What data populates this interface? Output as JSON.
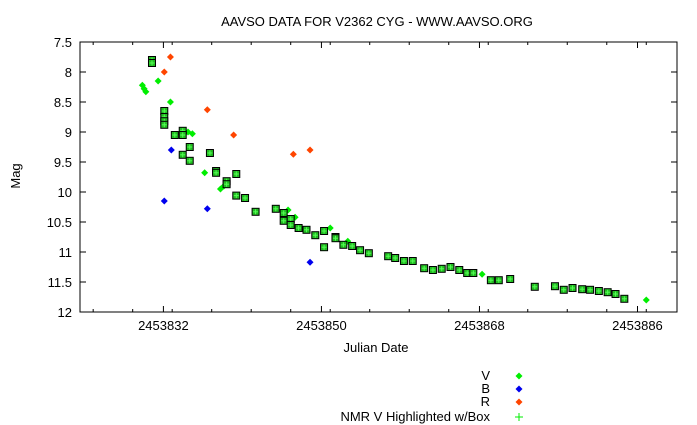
{
  "chart_data": {
    "type": "scatter",
    "title": "AAVSO DATA FOR V2362 CYG - WWW.AAVSO.ORG",
    "xlabel": "Julian Date",
    "ylabel": "Mag",
    "xlim": [
      2453822.5,
      2453890.5
    ],
    "ylim": [
      7.5,
      12
    ],
    "y_inverted": true,
    "x_ticks": [
      2453832,
      2453850,
      2453868,
      2453886
    ],
    "x_tick_labels": [
      "2453832",
      "2453850",
      "2453868",
      "2453886"
    ],
    "y_ticks": [
      7.5,
      8,
      8.5,
      9,
      9.5,
      10,
      10.5,
      11,
      11.5,
      12
    ],
    "y_tick_labels": [
      "7.5",
      "8",
      "8.5",
      "9",
      "9.5",
      "10",
      "10.5",
      "11",
      "11.5",
      "12"
    ],
    "grid": false,
    "legend_position": "bottom-right",
    "series": [
      {
        "name": "V",
        "color": "#00ee00",
        "marker": "diamond",
        "points": [
          [
            2453829.6,
            8.22
          ],
          [
            2453829.8,
            8.28
          ],
          [
            2453830.0,
            8.33
          ],
          [
            2453831.4,
            8.15
          ],
          [
            2453832.8,
            8.5
          ],
          [
            2453834.8,
            9.0
          ],
          [
            2453835.3,
            9.03
          ],
          [
            2453836.7,
            9.68
          ],
          [
            2453838.5,
            9.95
          ],
          [
            2453838.9,
            9.9
          ],
          [
            2453846.2,
            10.3
          ],
          [
            2453847.0,
            10.42
          ],
          [
            2453851.0,
            10.6
          ],
          [
            2453853.0,
            10.82
          ],
          [
            2453868.3,
            11.37
          ],
          [
            2453887.0,
            11.8
          ]
        ]
      },
      {
        "name": "B",
        "color": "#0000ee",
        "marker": "diamond",
        "points": [
          [
            2453832.1,
            10.15
          ],
          [
            2453832.9,
            9.3
          ],
          [
            2453837.0,
            10.28
          ],
          [
            2453848.7,
            11.17
          ]
        ]
      },
      {
        "name": "R",
        "color": "#ff4500",
        "marker": "diamond",
        "points": [
          [
            2453832.1,
            8.0
          ],
          [
            2453832.8,
            7.75
          ],
          [
            2453837.0,
            8.63
          ],
          [
            2453840.0,
            9.05
          ],
          [
            2453846.8,
            9.37
          ],
          [
            2453848.7,
            9.3
          ]
        ]
      },
      {
        "name": "NMR V Highlighted w/Box",
        "color": "#00ee00",
        "marker": "plus-box",
        "points": [
          [
            2453830.7,
            7.8
          ],
          [
            2453830.7,
            7.85
          ],
          [
            2453832.1,
            8.65
          ],
          [
            2453832.1,
            8.75
          ],
          [
            2453832.1,
            8.82
          ],
          [
            2453832.1,
            8.88
          ],
          [
            2453833.3,
            9.05
          ],
          [
            2453834.2,
            8.98
          ],
          [
            2453834.2,
            9.05
          ],
          [
            2453834.2,
            9.38
          ],
          [
            2453835.0,
            9.25
          ],
          [
            2453835.0,
            9.48
          ],
          [
            2453837.3,
            9.35
          ],
          [
            2453838.0,
            9.65
          ],
          [
            2453838.0,
            9.68
          ],
          [
            2453839.2,
            9.82
          ],
          [
            2453839.2,
            9.87
          ],
          [
            2453840.3,
            9.7
          ],
          [
            2453840.3,
            10.06
          ],
          [
            2453841.3,
            10.1
          ],
          [
            2453842.5,
            10.33
          ],
          [
            2453844.8,
            10.28
          ],
          [
            2453845.7,
            10.35
          ],
          [
            2453845.7,
            10.48
          ],
          [
            2453846.5,
            10.45
          ],
          [
            2453846.5,
            10.55
          ],
          [
            2453847.4,
            10.6
          ],
          [
            2453848.3,
            10.63
          ],
          [
            2453849.3,
            10.72
          ],
          [
            2453850.3,
            10.65
          ],
          [
            2453850.3,
            10.92
          ],
          [
            2453851.6,
            10.75
          ],
          [
            2453851.6,
            10.77
          ],
          [
            2453852.5,
            10.88
          ],
          [
            2453853.5,
            10.9
          ],
          [
            2453854.4,
            10.97
          ],
          [
            2453855.4,
            11.02
          ],
          [
            2453857.6,
            11.07
          ],
          [
            2453858.4,
            11.1
          ],
          [
            2453859.4,
            11.15
          ],
          [
            2453860.4,
            11.15
          ],
          [
            2453861.7,
            11.27
          ],
          [
            2453862.7,
            11.3
          ],
          [
            2453863.7,
            11.28
          ],
          [
            2453864.7,
            11.25
          ],
          [
            2453865.7,
            11.3
          ],
          [
            2453866.6,
            11.35
          ],
          [
            2453867.3,
            11.35
          ],
          [
            2453869.3,
            11.47
          ],
          [
            2453870.2,
            11.47
          ],
          [
            2453871.5,
            11.45
          ],
          [
            2453874.3,
            11.58
          ],
          [
            2453876.6,
            11.57
          ],
          [
            2453877.6,
            11.63
          ],
          [
            2453878.6,
            11.6
          ],
          [
            2453879.7,
            11.62
          ],
          [
            2453880.6,
            11.63
          ],
          [
            2453881.6,
            11.65
          ],
          [
            2453882.6,
            11.67
          ],
          [
            2453883.5,
            11.7
          ],
          [
            2453884.5,
            11.78
          ]
        ]
      }
    ]
  }
}
